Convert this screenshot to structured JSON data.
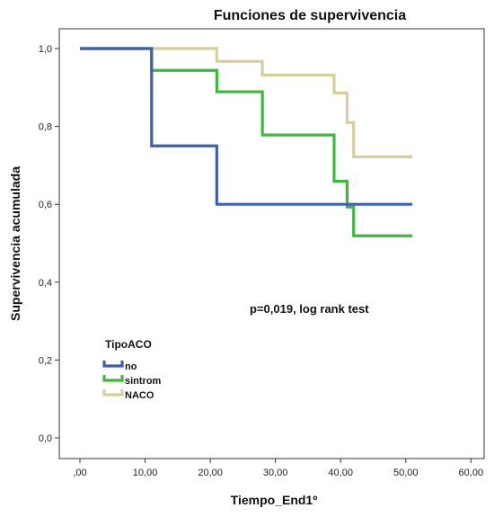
{
  "chart_data": {
    "type": "line",
    "step": true,
    "title": "Funciones de supervivencia",
    "xlabel": "Tiempo_End1º",
    "ylabel": "Supervivencia acumulada",
    "xlim": [
      0,
      60
    ],
    "ylim": [
      0,
      1
    ],
    "x_ticks": [
      ",00",
      "10,00",
      "20,00",
      "30,00",
      "40,00",
      "50,00",
      "60,00"
    ],
    "x_tick_values": [
      0,
      10,
      20,
      30,
      40,
      50,
      60
    ],
    "y_ticks": [
      "0,0",
      "0,2",
      "0,4",
      "0,6",
      "0,8",
      "1,0"
    ],
    "y_tick_values": [
      0,
      0.2,
      0.4,
      0.6,
      0.8,
      1.0
    ],
    "grid": false,
    "legend_title": "TipoACO",
    "legend_position": "lower-left",
    "annotation": "p=0,019, log rank test",
    "series": [
      {
        "name": "no",
        "color": "#3f5fb0",
        "x": [
          0,
          11,
          21,
          51
        ],
        "y": [
          1.0,
          0.75,
          0.6,
          0.6
        ]
      },
      {
        "name": "sintrom",
        "color": "#3cba3c",
        "x": [
          0,
          11,
          21,
          28,
          39,
          41,
          42,
          51
        ],
        "y": [
          1.0,
          0.944,
          0.889,
          0.778,
          0.659,
          0.593,
          0.519,
          0.519
        ]
      },
      {
        "name": "NACO",
        "color": "#d6cf9b",
        "x": [
          0,
          21,
          28,
          39,
          41,
          42,
          51
        ],
        "y": [
          1.0,
          0.967,
          0.932,
          0.886,
          0.81,
          0.722,
          0.722
        ]
      }
    ]
  }
}
